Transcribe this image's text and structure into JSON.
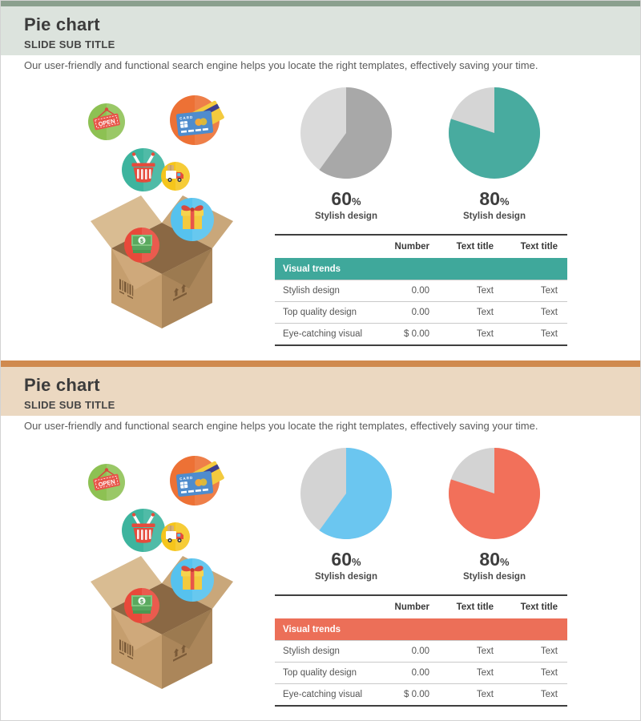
{
  "canvas": {
    "border_color": "#d3d3d3"
  },
  "illustration": {
    "open_sign_text": "OPEN",
    "card_text": "CARD",
    "dollar_text": "$",
    "icons": [
      "open-sign-icon",
      "credit-card-icon",
      "shopping-basket-icon",
      "delivery-truck-icon",
      "gift-icon",
      "money-icon",
      "open-box-icon"
    ]
  },
  "slides": [
    {
      "title": "Pie chart",
      "subtitle": "SLIDE SUB TITLE",
      "description": "Our user-friendly and functional search engine helps you locate the right templates, effectively saving your time.",
      "theme": {
        "topbar": "#8ba08e",
        "band": "#dce3dd",
        "accent": "#3fa89b"
      },
      "pies": [
        {
          "value": "60",
          "unit": "%",
          "label": "Stylish design",
          "pct": 60,
          "color": "#a8a8a8",
          "track": "#dadada"
        },
        {
          "value": "80",
          "unit": "%",
          "label": "Stylish design",
          "pct": 80,
          "color": "#48ab9f",
          "track": "#d5d5d5"
        }
      ],
      "table": {
        "headers": [
          "",
          "Number",
          "Text title",
          "Text title"
        ],
        "banner": "Visual trends",
        "rows": [
          [
            "Stylish design",
            "0.00",
            "Text",
            "Text"
          ],
          [
            "Top quality design",
            "0.00",
            "Text",
            "Text"
          ],
          [
            "Eye-catching visual",
            "$ 0.00",
            "Text",
            "Text"
          ]
        ]
      }
    },
    {
      "title": "Pie chart",
      "subtitle": "SLIDE SUB TITLE",
      "description": "Our user-friendly and functional search engine helps you locate the right templates, effectively saving your time.",
      "theme": {
        "topbar": "#d08a4e",
        "band": "#ebd8c1",
        "accent": "#ec6f58"
      },
      "pies": [
        {
          "value": "60",
          "unit": "%",
          "label": "Stylish design",
          "pct": 60,
          "color": "#6bc6f0",
          "track": "#d3d3d3"
        },
        {
          "value": "80",
          "unit": "%",
          "label": "Stylish design",
          "pct": 80,
          "color": "#f2705a",
          "track": "#d3d3d3"
        }
      ],
      "table": {
        "headers": [
          "",
          "Number",
          "Text title",
          "Text title"
        ],
        "banner": "Visual trends",
        "rows": [
          [
            "Stylish design",
            "0.00",
            "Text",
            "Text"
          ],
          [
            "Top quality design",
            "0.00",
            "Text",
            "Text"
          ],
          [
            "Eye-catching visual",
            "$ 0.00",
            "Text",
            "Text"
          ]
        ]
      }
    }
  ],
  "chart_data": [
    {
      "type": "pie",
      "slide": 1,
      "title": "60% Stylish design",
      "categories": [
        "Stylish design",
        "remainder"
      ],
      "values": [
        60,
        40
      ],
      "colors": [
        "#a8a8a8",
        "#dadada"
      ],
      "start_angle_deg": 0,
      "direction": "clockwise",
      "legend_position": "none"
    },
    {
      "type": "pie",
      "slide": 1,
      "title": "80% Stylish design",
      "categories": [
        "Stylish design",
        "remainder"
      ],
      "values": [
        80,
        20
      ],
      "colors": [
        "#48ab9f",
        "#d5d5d5"
      ],
      "start_angle_deg": 0,
      "direction": "clockwise",
      "legend_position": "none"
    },
    {
      "type": "pie",
      "slide": 2,
      "title": "60% Stylish design",
      "categories": [
        "Stylish design",
        "remainder"
      ],
      "values": [
        60,
        40
      ],
      "colors": [
        "#6bc6f0",
        "#d3d3d3"
      ],
      "start_angle_deg": 0,
      "direction": "clockwise",
      "legend_position": "none"
    },
    {
      "type": "pie",
      "slide": 2,
      "title": "80% Stylish design",
      "categories": [
        "Stylish design",
        "remainder"
      ],
      "values": [
        80,
        20
      ],
      "colors": [
        "#f2705a",
        "#d3d3d3"
      ],
      "start_angle_deg": 0,
      "direction": "clockwise",
      "legend_position": "none"
    },
    {
      "type": "table",
      "slide": 1,
      "columns": [
        "",
        "Number",
        "Text title",
        "Text title"
      ],
      "section_banner": "Visual trends",
      "rows": [
        [
          "Stylish design",
          "0.00",
          "Text",
          "Text"
        ],
        [
          "Top quality design",
          "0.00",
          "Text",
          "Text"
        ],
        [
          "Eye-catching visual",
          "$ 0.00",
          "Text",
          "Text"
        ]
      ]
    },
    {
      "type": "table",
      "slide": 2,
      "columns": [
        "",
        "Number",
        "Text title",
        "Text title"
      ],
      "section_banner": "Visual trends",
      "rows": [
        [
          "Stylish design",
          "0.00",
          "Text",
          "Text"
        ],
        [
          "Top quality design",
          "0.00",
          "Text",
          "Text"
        ],
        [
          "Eye-catching visual",
          "$ 0.00",
          "Text",
          "Text"
        ]
      ]
    }
  ]
}
